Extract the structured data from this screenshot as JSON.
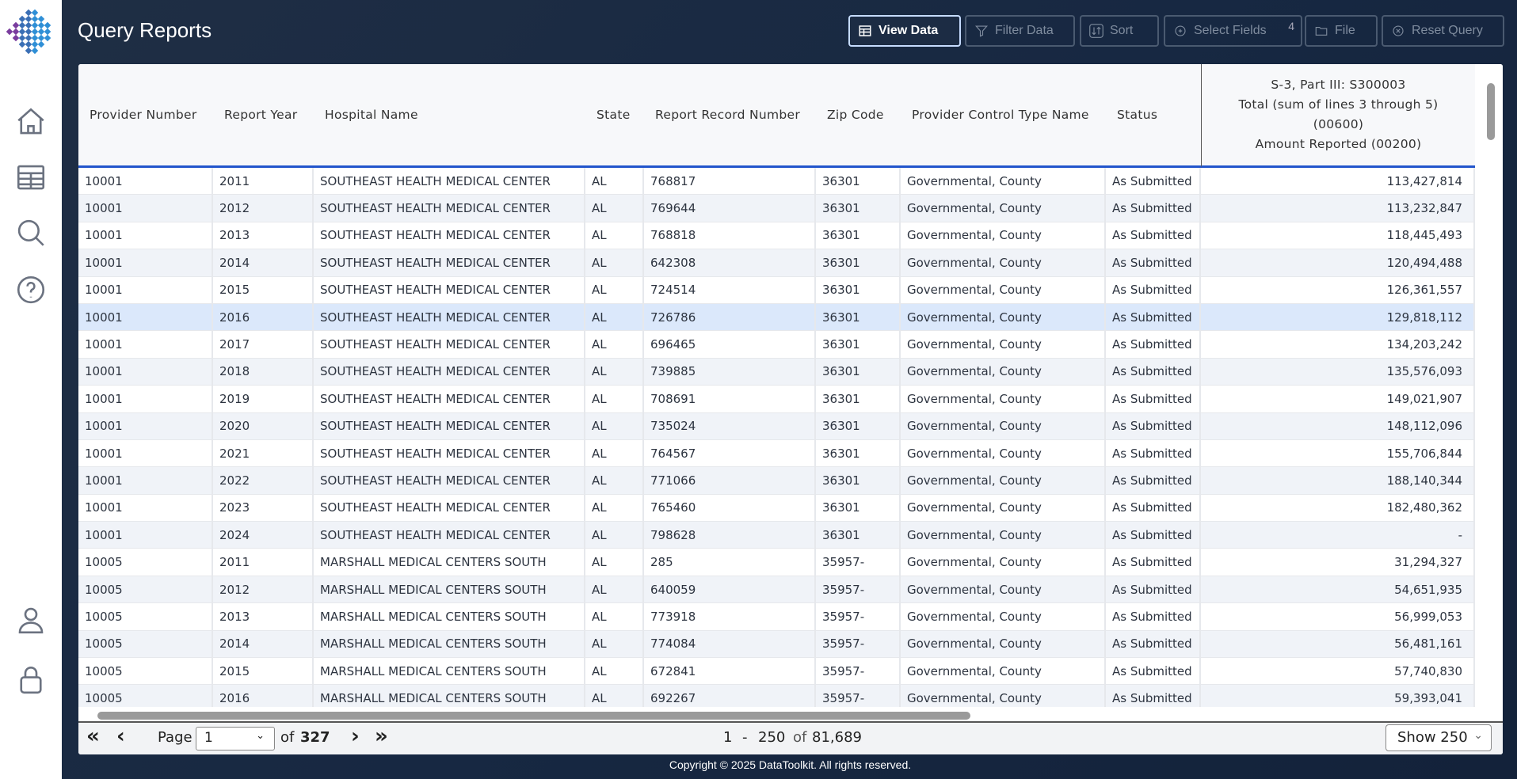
{
  "app": {
    "title": "Query Reports",
    "copyright": "Copyright © 2025 DataToolkit. All rights reserved."
  },
  "sidebar": [
    "home-icon",
    "table-icon",
    "search-icon",
    "help-icon",
    "user-icon",
    "lock-icon"
  ],
  "toolbar": {
    "view_data": "View Data",
    "filter_data": "Filter Data",
    "sort": "Sort",
    "select_fields": "Select Fields",
    "select_fields_count": "4",
    "file": "File",
    "reset_query": "Reset Query"
  },
  "table": {
    "headers": [
      "Provider Number",
      "Report Year",
      "Hospital Name",
      "State",
      "Report Record Number",
      "Zip Code",
      "Provider Control Type Name",
      "Status"
    ],
    "amount_header": [
      "S-3, Part III: S300003",
      "Total (sum of lines 3 through 5)",
      "(00600)",
      "Amount Reported (00200)"
    ],
    "selected_row": 5,
    "rows": [
      [
        "10001",
        "2011",
        "SOUTHEAST HEALTH MEDICAL CENTER",
        "AL",
        "768817",
        "36301",
        "Governmental, County",
        "As Submitted",
        "113,427,814"
      ],
      [
        "10001",
        "2012",
        "SOUTHEAST HEALTH MEDICAL CENTER",
        "AL",
        "769644",
        "36301",
        "Governmental, County",
        "As Submitted",
        "113,232,847"
      ],
      [
        "10001",
        "2013",
        "SOUTHEAST HEALTH MEDICAL CENTER",
        "AL",
        "768818",
        "36301",
        "Governmental, County",
        "As Submitted",
        "118,445,493"
      ],
      [
        "10001",
        "2014",
        "SOUTHEAST HEALTH MEDICAL CENTER",
        "AL",
        "642308",
        "36301",
        "Governmental, County",
        "As Submitted",
        "120,494,488"
      ],
      [
        "10001",
        "2015",
        "SOUTHEAST HEALTH MEDICAL CENTER",
        "AL",
        "724514",
        "36301",
        "Governmental, County",
        "As Submitted",
        "126,361,557"
      ],
      [
        "10001",
        "2016",
        "SOUTHEAST HEALTH MEDICAL CENTER",
        "AL",
        "726786",
        "36301",
        "Governmental, County",
        "As Submitted",
        "129,818,112"
      ],
      [
        "10001",
        "2017",
        "SOUTHEAST HEALTH MEDICAL CENTER",
        "AL",
        "696465",
        "36301",
        "Governmental, County",
        "As Submitted",
        "134,203,242"
      ],
      [
        "10001",
        "2018",
        "SOUTHEAST HEALTH MEDICAL CENTER",
        "AL",
        "739885",
        "36301",
        "Governmental, County",
        "As Submitted",
        "135,576,093"
      ],
      [
        "10001",
        "2019",
        "SOUTHEAST HEALTH MEDICAL CENTER",
        "AL",
        "708691",
        "36301",
        "Governmental, County",
        "As Submitted",
        "149,021,907"
      ],
      [
        "10001",
        "2020",
        "SOUTHEAST HEALTH MEDICAL CENTER",
        "AL",
        "735024",
        "36301",
        "Governmental, County",
        "As Submitted",
        "148,112,096"
      ],
      [
        "10001",
        "2021",
        "SOUTHEAST HEALTH MEDICAL CENTER",
        "AL",
        "764567",
        "36301",
        "Governmental, County",
        "As Submitted",
        "155,706,844"
      ],
      [
        "10001",
        "2022",
        "SOUTHEAST HEALTH MEDICAL CENTER",
        "AL",
        "771066",
        "36301",
        "Governmental, County",
        "As Submitted",
        "188,140,344"
      ],
      [
        "10001",
        "2023",
        "SOUTHEAST HEALTH MEDICAL CENTER",
        "AL",
        "765460",
        "36301",
        "Governmental, County",
        "As Submitted",
        "182,480,362"
      ],
      [
        "10001",
        "2024",
        "SOUTHEAST HEALTH MEDICAL CENTER",
        "AL",
        "798628",
        "36301",
        "Governmental, County",
        "As Submitted",
        "-"
      ],
      [
        "10005",
        "2011",
        "MARSHALL MEDICAL CENTERS SOUTH",
        "AL",
        "285",
        "35957-",
        "Governmental, County",
        "As Submitted",
        "31,294,327"
      ],
      [
        "10005",
        "2012",
        "MARSHALL MEDICAL CENTERS SOUTH",
        "AL",
        "640059",
        "35957-",
        "Governmental, County",
        "As Submitted",
        "54,651,935"
      ],
      [
        "10005",
        "2013",
        "MARSHALL MEDICAL CENTERS SOUTH",
        "AL",
        "773918",
        "35957-",
        "Governmental, County",
        "As Submitted",
        "56,999,053"
      ],
      [
        "10005",
        "2014",
        "MARSHALL MEDICAL CENTERS SOUTH",
        "AL",
        "774084",
        "35957-",
        "Governmental, County",
        "As Submitted",
        "56,481,161"
      ],
      [
        "10005",
        "2015",
        "MARSHALL MEDICAL CENTERS SOUTH",
        "AL",
        "672841",
        "35957-",
        "Governmental, County",
        "As Submitted",
        "57,740,830"
      ],
      [
        "10005",
        "2016",
        "MARSHALL MEDICAL CENTERS SOUTH",
        "AL",
        "692267",
        "35957-",
        "Governmental, County",
        "As Submitted",
        "59,393,041"
      ]
    ]
  },
  "pager": {
    "page_label": "Page",
    "page": "1",
    "of_label": "of",
    "total_pages": "327",
    "range_start": "1",
    "range_sep": "-",
    "range_end": "250",
    "range_of": "of",
    "total_records": "81,689",
    "show": "Show 250"
  },
  "colors": {
    "accent": "#2255cc",
    "selected_row": "#dbe8fb",
    "header_bg": "#1a2a40"
  }
}
